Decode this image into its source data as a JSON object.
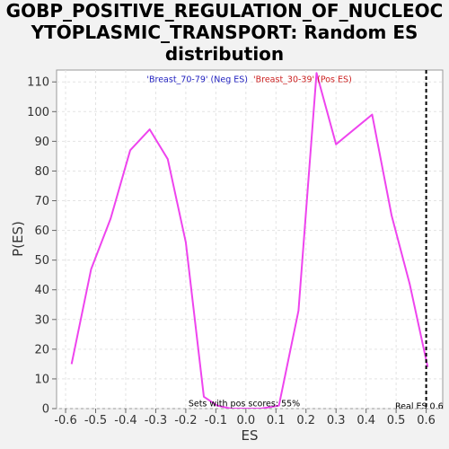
{
  "chart_data": {
    "type": "line",
    "title_lines": [
      "GOBP_POSITIVE_REGULATION_OF_NUCLEOC",
      "YTOPLASMIC_TRANSPORT: Random ES",
      "distribution"
    ],
    "xlabel": "ES",
    "ylabel": "P(ES)",
    "xlim": [
      -0.63,
      0.655
    ],
    "ylim": [
      0,
      114
    ],
    "xticks": [
      "-0.6",
      "-0.5",
      "-0.4",
      "-0.3",
      "-0.2",
      "-0.1",
      "0.0",
      "0.1",
      "0.2",
      "0.3",
      "0.4",
      "0.5",
      "0.6"
    ],
    "xtick_values": [
      -0.6,
      -0.5,
      -0.4,
      -0.3,
      -0.2,
      -0.1,
      0.0,
      0.1,
      0.2,
      0.3,
      0.4,
      0.5,
      0.6
    ],
    "yticks": [
      "0",
      "10",
      "20",
      "30",
      "40",
      "50",
      "60",
      "70",
      "80",
      "90",
      "100",
      "110"
    ],
    "ytick_values": [
      0,
      10,
      20,
      30,
      40,
      50,
      60,
      70,
      80,
      90,
      100,
      110
    ],
    "grid": true,
    "series": [
      {
        "name": "",
        "color": "#ee44ee",
        "x": [
          -0.58,
          -0.515,
          -0.45,
          -0.385,
          -0.32,
          -0.26,
          -0.2,
          -0.14,
          -0.095,
          -0.05,
          0.0,
          0.05,
          0.11,
          0.175,
          0.235,
          0.3,
          0.42,
          0.485,
          0.545,
          0.605
        ],
        "y": [
          15,
          47,
          64,
          87,
          94,
          84,
          56,
          4,
          1,
          0,
          0,
          0,
          1,
          33,
          113,
          89,
          99,
          65,
          42,
          14
        ]
      }
    ],
    "legend": [
      {
        "label": "'Breast_70-79' (Neg ES)",
        "color": "#1f1fbf"
      },
      {
        "label": "'Breast_30-39' (Pos ES)",
        "color": "#cc2222"
      }
    ],
    "annotations": {
      "pos_scores": "Sets with pos scores: 55%",
      "real_es_label": "Real ES 0.6",
      "real_es": 0.6
    }
  }
}
